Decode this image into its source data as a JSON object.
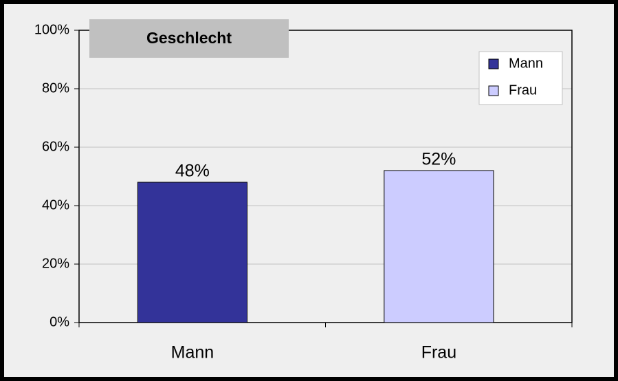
{
  "chart_data": {
    "type": "bar",
    "title": "Geschlecht",
    "categories": [
      "Mann",
      "Frau"
    ],
    "values": [
      48,
      52
    ],
    "value_labels": [
      "48%",
      "52%"
    ],
    "colors": [
      "#333399",
      "#ccccff"
    ],
    "ylim": [
      0,
      100
    ],
    "yticks": [
      {
        "value": 0,
        "label": "0%"
      },
      {
        "value": 20,
        "label": "20%"
      },
      {
        "value": 40,
        "label": "40%"
      },
      {
        "value": 60,
        "label": "60%"
      },
      {
        "value": 80,
        "label": "80%"
      },
      {
        "value": 100,
        "label": "100%"
      }
    ],
    "grid": true,
    "legend": "upper right"
  }
}
